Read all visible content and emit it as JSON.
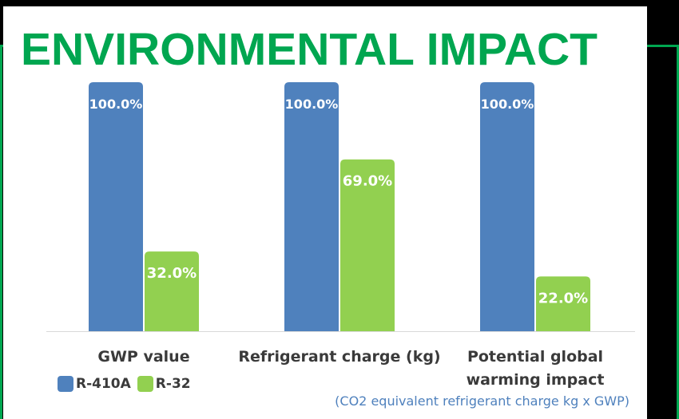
{
  "title": "ENVIRONMENTAL IMPACT",
  "footnote": "(CO2 equivalent refrigerant charge kg x GWP)",
  "colors": {
    "R-410A": "#4f81bd",
    "R-32": "#92d050",
    "accent": "#00a650"
  },
  "chart_data": {
    "type": "bar",
    "categories": [
      "GWP value",
      "Refrigerant charge (kg)",
      "Potential global warming impact"
    ],
    "series": [
      {
        "name": "R-410A",
        "values": [
          100.0,
          100.0,
          100.0
        ],
        "labels": [
          "100.0%",
          "100.0%",
          "100.0%"
        ]
      },
      {
        "name": "R-32",
        "values": [
          32.0,
          69.0,
          22.0
        ],
        "labels": [
          "32.0%",
          "69.0%",
          "22.0%"
        ]
      }
    ],
    "ylim": [
      0,
      100
    ],
    "grid": false,
    "legend": "bottom-left"
  }
}
